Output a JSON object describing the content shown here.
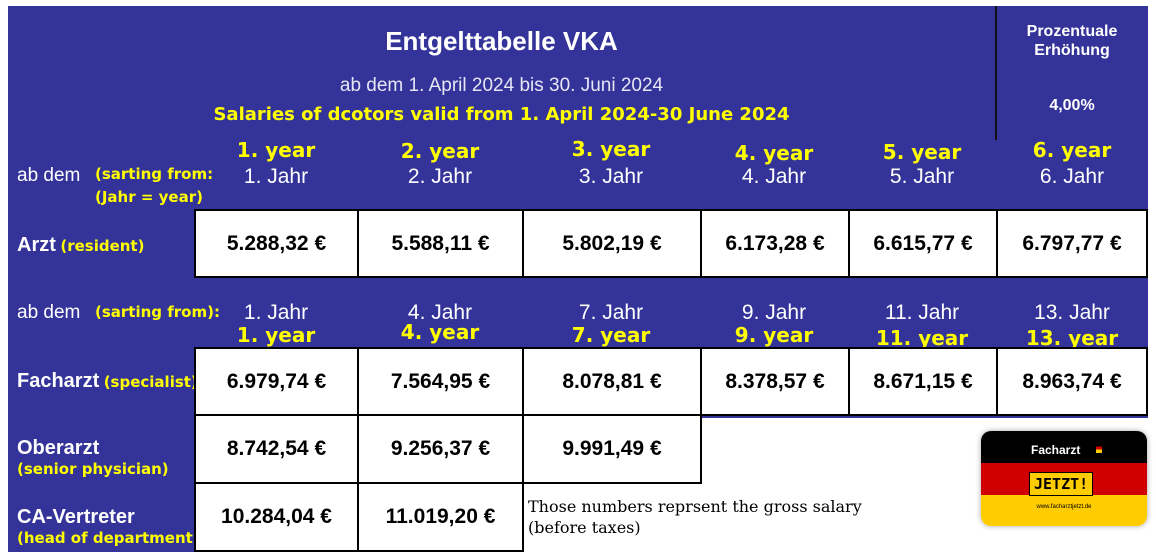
{
  "header": {
    "title": "Entgelttabelle VKA",
    "subtitle": "ab dem 1. April 2024 bis 30. Juni 2024",
    "translation": "Salaries of dcotors valid from 1. April 2024-30 June 2024",
    "increase_label": "Prozentuale Erhöhung",
    "increase_value": "4,00%"
  },
  "row_ab_dem_1": {
    "label": "ab dem",
    "label_en": "(sarting from:",
    "label_en2": "(Jahr = year)",
    "years_de": [
      "1. Jahr",
      "2. Jahr",
      "3. Jahr",
      "4. Jahr",
      "5. Jahr",
      "6. Jahr"
    ],
    "years_en": [
      "1. year",
      "2. year",
      "3. year",
      "4. year",
      "5. year",
      "6. year"
    ]
  },
  "arzt": {
    "label": "Arzt",
    "label_en": "(resident)",
    "values": [
      "5.288,32 €",
      "5.588,11 €",
      "5.802,19 €",
      "6.173,28 €",
      "6.615,77 €",
      "6.797,77 €"
    ]
  },
  "row_ab_dem_2": {
    "label": "ab dem",
    "label_en": "(sarting from):",
    "years_de": [
      "1. Jahr",
      "4. Jahr",
      "7. Jahr",
      "9. Jahr",
      "11. Jahr",
      "13. Jahr"
    ],
    "years_en": [
      "1. year",
      "4. year",
      "7. year",
      "9. year",
      "11. year",
      "13. year"
    ]
  },
  "facharzt": {
    "label": "Facharzt",
    "label_en": "(specialist)",
    "values": [
      "6.979,74 €",
      "7.564,95 €",
      "8.078,81 €",
      "8.378,57 €",
      "8.671,15 €",
      "8.963,74 €"
    ]
  },
  "oberarzt": {
    "label": "Oberarzt",
    "label_en": "(senior physician)",
    "values": [
      "8.742,54 €",
      "9.256,37 €",
      "9.991,49 €"
    ]
  },
  "ca_vertreter": {
    "label": "CA-Vertreter",
    "label_en": "(head of department)",
    "values": [
      "10.284,04 €",
      "11.019,20 €"
    ]
  },
  "note": {
    "line1": "Those numbers reprsent the gross salary",
    "line2": "(before taxes)"
  },
  "logo": {
    "brand": "Facharzt",
    "badge": "JETZT!",
    "url": "www.facharztjetzt.de"
  }
}
